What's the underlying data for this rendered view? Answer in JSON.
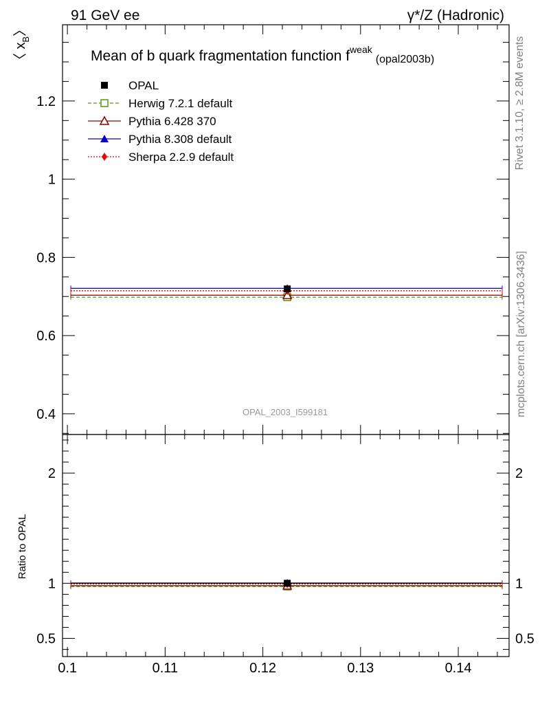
{
  "header": {
    "left": "91 GeV ee",
    "right": "γ*/Z (Hadronic)"
  },
  "side_labels": {
    "rivet": "Rivet 3.1.10, ≥ 2.8M events",
    "mcplots": "mcplots.cern.ch [arXiv:1306.3436]"
  },
  "chart_data": {
    "type": "scatter",
    "title": "Mean of b quark fragmentation function f",
    "title_superscript": "weak",
    "title_suffix": "(opal2003b)",
    "analysis_id": "OPAL_2003_I599181",
    "ylabel": "〈 x",
    "ylabel_subscript": "B",
    "ylabel_close": "〉",
    "ratio_ylabel": "Ratio to OPAL",
    "x": [
      0.1225
    ],
    "xlim": [
      0.0995,
      0.1452
    ],
    "ylim": [
      0.347,
      1.395
    ],
    "ratio_ylim": [
      0.335,
      2.35
    ],
    "x_ticks": [
      {
        "v": 0.1,
        "label": "0.1"
      },
      {
        "v": 0.11,
        "label": "0.11"
      },
      {
        "v": 0.12,
        "label": "0.12"
      },
      {
        "v": 0.13,
        "label": "0.13"
      },
      {
        "v": 0.14,
        "label": "0.14"
      }
    ],
    "y_ticks": [
      {
        "v": 0.4,
        "label": "0.4"
      },
      {
        "v": 0.6,
        "label": "0.6"
      },
      {
        "v": 0.8,
        "label": "0.8"
      },
      {
        "v": 1.0,
        "label": "1"
      },
      {
        "v": 1.2,
        "label": "1.2"
      }
    ],
    "ratio_ticks": [
      {
        "v": 0.5,
        "label": "0.5"
      },
      {
        "v": 1.0,
        "label": "1"
      },
      {
        "v": 2.0,
        "label": "2"
      }
    ],
    "series": [
      {
        "name": "OPAL",
        "marker": "square",
        "color": "#000000",
        "dash": "none",
        "line": false,
        "values": [
          0.7193
        ],
        "ratio": [
          1.0
        ]
      },
      {
        "name": "Herwig 7.2.1 default",
        "marker": "open-square",
        "color": "#4f9a00",
        "dash": "5,3",
        "line": true,
        "values": [
          0.6983
        ],
        "ratio": [
          0.971
        ]
      },
      {
        "name": "Pythia 6.428 370",
        "marker": "open-triangle",
        "color": "#8b0000",
        "dash": "none",
        "line": true,
        "values": [
          0.7033
        ],
        "ratio": [
          0.978
        ]
      },
      {
        "name": "Pythia 8.308 default",
        "marker": "triangle",
        "color": "#0000dd",
        "dash": "none",
        "line": true,
        "values": [
          0.7209
        ],
        "ratio": [
          1.002
        ]
      },
      {
        "name": "Sherpa 2.2.9 default",
        "marker": "diamond",
        "color": "#ee0000",
        "dash": "2,2",
        "line": true,
        "values": [
          0.7146
        ],
        "ratio": [
          0.993
        ]
      }
    ]
  }
}
